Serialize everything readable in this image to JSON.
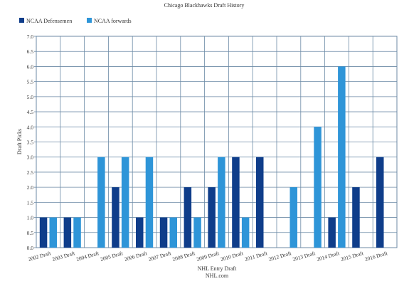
{
  "chart_data": {
    "type": "bar",
    "title": "Chicago Blackhawks Draft History",
    "xlabel": "NHL Entry Draft",
    "xlabel_sub": "NHL.com",
    "ylabel": "Draft Picks",
    "ylim": [
      0,
      7
    ],
    "ytick_step": 0.5,
    "grid": true,
    "legend_position": "top-left",
    "categories": [
      "2002 Draft",
      "2003 Draft",
      "2004 Draft",
      "2005 Draft",
      "2006 Draft",
      "2007 Draft",
      "2008 Draft",
      "2009 Draft",
      "2010 Draft",
      "2011 Draft",
      "2012 Draft",
      "2013 Draft",
      "2014 Draft",
      "2015 Draft",
      "2016 Draft"
    ],
    "series": [
      {
        "name": "NCAA Defensemen",
        "color": "#0f3d8a",
        "values": [
          1,
          1,
          0,
          2,
          1,
          1,
          2,
          2,
          3,
          3,
          0,
          0,
          1,
          2,
          3
        ]
      },
      {
        "name": "NCAA forwards",
        "color": "#2e95d8",
        "values": [
          1,
          1,
          3,
          3,
          3,
          1,
          1,
          3,
          1,
          0,
          2,
          4,
          6,
          0,
          0
        ]
      }
    ]
  }
}
